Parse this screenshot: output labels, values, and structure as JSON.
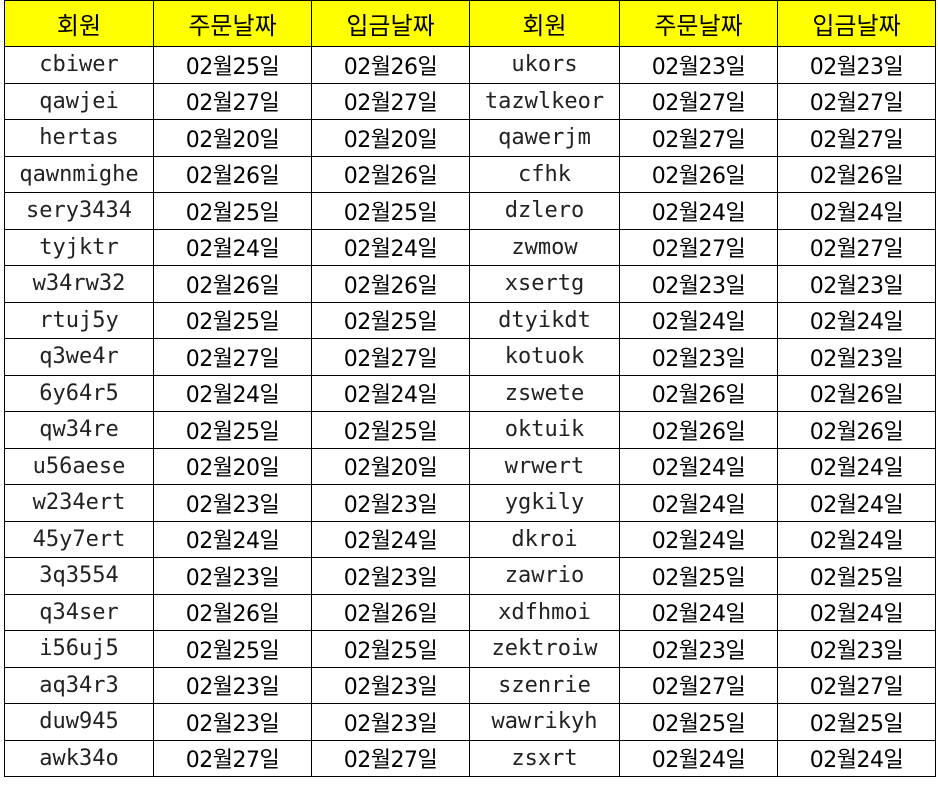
{
  "headers": [
    "회원",
    "주문날짜",
    "입금날짜",
    "회원",
    "주문날짜",
    "입금날짜"
  ],
  "header_color": "#ffff00",
  "rows": [
    [
      "cbiwer",
      "02월25일",
      "02월26일",
      "ukors",
      "02월23일",
      "02월23일"
    ],
    [
      "qawjei",
      "02월27일",
      "02월27일",
      "tazwlkeor",
      "02월27일",
      "02월27일"
    ],
    [
      "hertas",
      "02월20일",
      "02월20일",
      "qawerjm",
      "02월27일",
      "02월27일"
    ],
    [
      "qawnmighe",
      "02월26일",
      "02월26일",
      "cfhk",
      "02월26일",
      "02월26일"
    ],
    [
      "sery3434",
      "02월25일",
      "02월25일",
      "dzlero",
      "02월24일",
      "02월24일"
    ],
    [
      "tyjktr",
      "02월24일",
      "02월24일",
      "zwmow",
      "02월27일",
      "02월27일"
    ],
    [
      "w34rw32",
      "02월26일",
      "02월26일",
      "xsertg",
      "02월23일",
      "02월23일"
    ],
    [
      "rtuj5y",
      "02월25일",
      "02월25일",
      "dtyikdt",
      "02월24일",
      "02월24일"
    ],
    [
      "q3we4r",
      "02월27일",
      "02월27일",
      "kotuok",
      "02월23일",
      "02월23일"
    ],
    [
      "6y64r5",
      "02월24일",
      "02월24일",
      "zswete",
      "02월26일",
      "02월26일"
    ],
    [
      "qw34re",
      "02월25일",
      "02월25일",
      "oktuik",
      "02월26일",
      "02월26일"
    ],
    [
      "u56aese",
      "02월20일",
      "02월20일",
      "wrwert",
      "02월24일",
      "02월24일"
    ],
    [
      "w234ert",
      "02월23일",
      "02월23일",
      "ygkily",
      "02월24일",
      "02월24일"
    ],
    [
      "45y7ert",
      "02월24일",
      "02월24일",
      "dkroi",
      "02월24일",
      "02월24일"
    ],
    [
      "3q3554",
      "02월23일",
      "02월23일",
      "zawrio",
      "02월25일",
      "02월25일"
    ],
    [
      "q34ser",
      "02월26일",
      "02월26일",
      "xdfhmoi",
      "02월24일",
      "02월24일"
    ],
    [
      "i56uj5",
      "02월25일",
      "02월25일",
      "zektroiw",
      "02월23일",
      "02월23일"
    ],
    [
      "aq34r3",
      "02월23일",
      "02월23일",
      "szenrie",
      "02월27일",
      "02월27일"
    ],
    [
      "duw945",
      "02월23일",
      "02월23일",
      "wawrikyh",
      "02월25일",
      "02월25일"
    ],
    [
      "awk34o",
      "02월27일",
      "02월27일",
      "zsxrt",
      "02월24일",
      "02월24일"
    ]
  ]
}
